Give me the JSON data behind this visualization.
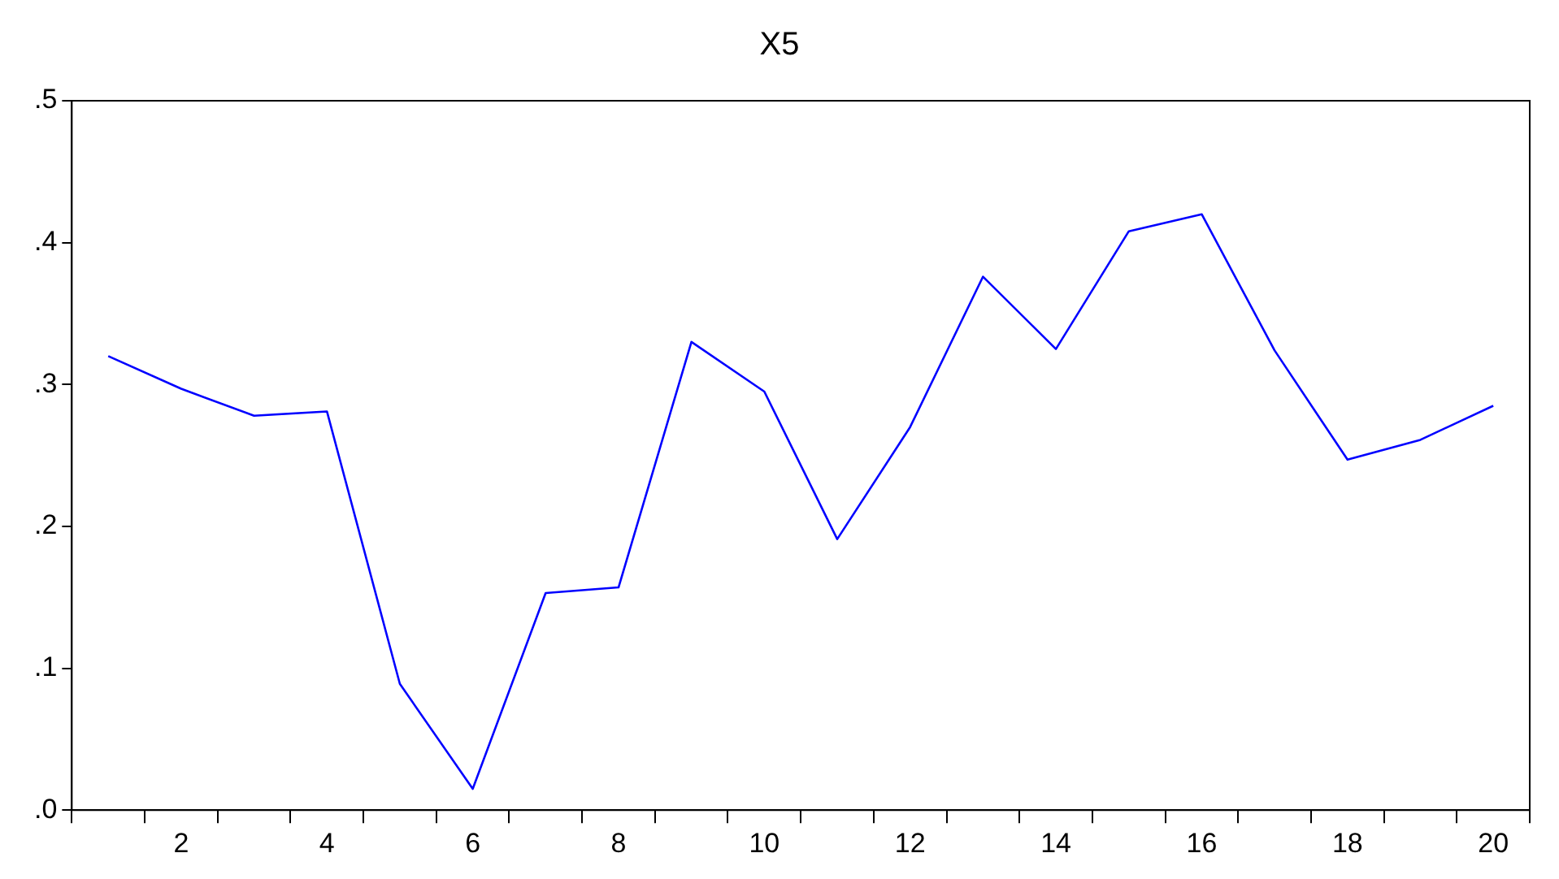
{
  "chart_data": {
    "type": "line",
    "title": "X5",
    "categories": [
      null,
      "2",
      null,
      "4",
      null,
      "6",
      null,
      "8",
      null,
      "10",
      null,
      "12",
      null,
      "14",
      null,
      "16",
      null,
      "18",
      null,
      "20"
    ],
    "series": [
      {
        "color": "#0000ff",
        "values": [
          0.32,
          0.297,
          0.278,
          0.281,
          0.089,
          0.015,
          0.153,
          0.157,
          0.33,
          0.295,
          0.191,
          0.27,
          0.376,
          0.325,
          0.408,
          0.42,
          0.324,
          0.247,
          0.261,
          0.285
        ]
      }
    ],
    "ylim": [
      0,
      0.5
    ],
    "yticks": [
      {
        "value": 0,
        "label": ".0"
      },
      {
        "value": 0.1,
        "label": ".1"
      },
      {
        "value": 0.2,
        "label": ".2"
      },
      {
        "value": 0.3,
        "label": ".3"
      },
      {
        "value": 0.4,
        "label": ".4"
      },
      {
        "value": 0.5,
        "label": ".5"
      }
    ],
    "grid": false,
    "legend": false,
    "marker": "none",
    "line_style": "solid"
  }
}
